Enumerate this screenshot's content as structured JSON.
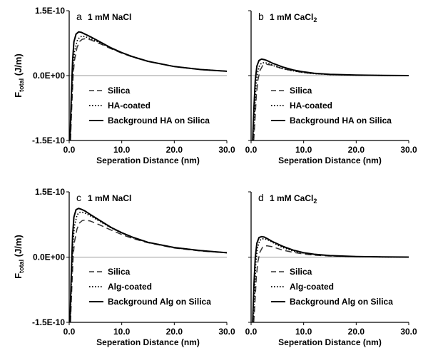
{
  "y_axis_label": "F",
  "y_axis_label_sub": "total",
  "y_axis_unit": " (J/m)",
  "chart_data": [
    {
      "panel": "a",
      "type": "line",
      "condition": "1 mM NaCl",
      "xlabel": "Seperation Distance (nm)",
      "xlim": [
        0,
        30
      ],
      "ylim": [
        -1.5e-10,
        1.5e-10
      ],
      "x_tick_labels": [
        "0.0",
        "10.0",
        "20.0",
        "30.0"
      ],
      "y_tick_labels": [
        "1.5E-10",
        "0.0E+00",
        "-1.5E-10"
      ],
      "series": [
        {
          "name": "Silica",
          "style": "dashed",
          "x": [
            0.25,
            0.5,
            0.75,
            1.0,
            1.5,
            2.0,
            2.5,
            3.0,
            4.0,
            6.0,
            8.0,
            10.0,
            12.0,
            15.0,
            20.0,
            25.0,
            30.0
          ],
          "y": [
            -1.5e-10,
            -7e-11,
            0.0,
            3.5e-11,
            6.5e-11,
            7.9e-11,
            8.4e-11,
            8.5e-11,
            8.3e-11,
            7.3e-11,
            6.2e-11,
            5.2e-11,
            4.3e-11,
            3.3e-11,
            2.1e-11,
            1.4e-11,
            1e-11
          ]
        },
        {
          "name": "HA-coated",
          "style": "dotted",
          "x": [
            0.2,
            0.45,
            0.7,
            1.0,
            1.5,
            2.0,
            2.5,
            3.0,
            4.0,
            6.0,
            8.0,
            10.0,
            12.0,
            15.0,
            20.0,
            25.0,
            30.0
          ],
          "y": [
            -1.5e-10,
            -6e-11,
            1.5e-11,
            5.5e-11,
            8e-11,
            8.9e-11,
            9.1e-11,
            9e-11,
            8.6e-11,
            7.5e-11,
            6.3e-11,
            5.3e-11,
            4.4e-11,
            3.3e-11,
            2.1e-11,
            1.4e-11,
            1e-11
          ]
        },
        {
          "name": "Background HA on Silica",
          "style": "solid",
          "x": [
            0.15,
            0.4,
            0.65,
            0.9,
            1.3,
            1.8,
            2.3,
            3.0,
            4.0,
            6.0,
            8.0,
            10.0,
            12.0,
            15.0,
            20.0,
            25.0,
            30.0
          ],
          "y": [
            -1.5e-10,
            -5e-11,
            3.5e-11,
            7.8e-11,
            9.6e-11,
            1.01e-10,
            1e-10,
            9.6e-11,
            9e-11,
            7.7e-11,
            6.4e-11,
            5.3e-11,
            4.4e-11,
            3.3e-11,
            2.1e-11,
            1.4e-11,
            1e-11
          ]
        }
      ],
      "legend": [
        "Silica",
        "HA-coated",
        "Background HA on Silica"
      ]
    },
    {
      "panel": "b",
      "type": "line",
      "condition": "1 mM CaCl",
      "condition_sub": "2",
      "xlabel": "Seperation Distance (nm)",
      "xlim": [
        0,
        30
      ],
      "ylim": [
        -1.5e-10,
        1.5e-10
      ],
      "x_tick_labels": [
        "0.0",
        "10.0",
        "20.0",
        "30.0"
      ],
      "y_tick_labels": [],
      "series": [
        {
          "name": "Silica",
          "style": "dashed",
          "x": [
            0.5,
            0.8,
            1.0,
            1.3,
            1.7,
            2.2,
            3.0,
            4.0,
            5.0,
            6.0,
            8.0,
            10.0,
            12.0,
            15.0,
            20.0,
            25.0,
            30.0
          ],
          "y": [
            -1.5e-10,
            -9e-11,
            -4.5e-11,
            -1e-11,
            1.2e-11,
            2.3e-11,
            2.6e-11,
            2.4e-11,
            2e-11,
            1.6e-11,
            1.1e-11,
            7e-12,
            4.5e-12,
            2.5e-12,
            1e-12,
            3e-13,
            0.0
          ]
        },
        {
          "name": "HA-coated",
          "style": "dotted",
          "x": [
            0.4,
            0.7,
            0.9,
            1.2,
            1.6,
            2.0,
            2.6,
            3.5,
            4.5,
            6.0,
            8.0,
            10.0,
            12.0,
            15.0,
            20.0,
            25.0,
            30.0
          ],
          "y": [
            -1.5e-10,
            -8e-11,
            -3e-11,
            5e-12,
            2.3e-11,
            2.9e-11,
            3e-11,
            2.7e-11,
            2.2e-11,
            1.6e-11,
            1.1e-11,
            7e-12,
            4.5e-12,
            2.5e-12,
            1e-12,
            3e-13,
            0.0
          ]
        },
        {
          "name": "Background HA on Silica",
          "style": "solid",
          "x": [
            0.3,
            0.55,
            0.8,
            1.1,
            1.5,
            2.0,
            2.5,
            3.0,
            4.0,
            6.0,
            8.0,
            10.0,
            12.0,
            15.0,
            20.0,
            25.0,
            30.0
          ],
          "y": [
            -1.5e-10,
            -7e-11,
            -1e-11,
            2.2e-11,
            3.5e-11,
            3.8e-11,
            3.7e-11,
            3.5e-11,
            2.9e-11,
            2e-11,
            1.3e-11,
            8.5e-12,
            5.5e-12,
            3e-12,
            1.2e-12,
            4e-13,
            0.0
          ]
        }
      ],
      "legend": [
        "Silica",
        "HA-coated",
        "Background HA on Silica"
      ]
    },
    {
      "panel": "c",
      "type": "line",
      "condition": "1 mM NaCl",
      "xlabel": "Seperation Distance (nm)",
      "xlim": [
        0,
        30
      ],
      "ylim": [
        -1.5e-10,
        1.5e-10
      ],
      "x_tick_labels": [
        "0.0",
        "10.0",
        "20.0",
        "30.0"
      ],
      "y_tick_labels": [
        "1.5E-10",
        "0.0E+00",
        "-1.5E-10"
      ],
      "series": [
        {
          "name": "Silica",
          "style": "dashed",
          "x": [
            0.25,
            0.5,
            0.75,
            1.0,
            1.5,
            2.0,
            2.5,
            3.0,
            4.0,
            6.0,
            8.0,
            10.0,
            12.0,
            15.0,
            20.0,
            25.0,
            30.0
          ],
          "y": [
            -1.5e-10,
            -7e-11,
            0.0,
            3.5e-11,
            6.5e-11,
            7.9e-11,
            8.4e-11,
            8.5e-11,
            8.3e-11,
            7.3e-11,
            6.2e-11,
            5.2e-11,
            4.3e-11,
            3.3e-11,
            2.1e-11,
            1.4e-11,
            1e-11
          ]
        },
        {
          "name": "Alg-coated",
          "style": "dotted",
          "x": [
            0.2,
            0.45,
            0.7,
            1.0,
            1.5,
            2.0,
            2.5,
            3.0,
            4.0,
            6.0,
            8.0,
            10.0,
            12.0,
            15.0,
            20.0,
            25.0,
            30.0
          ],
          "y": [
            -1.5e-10,
            -5e-11,
            3e-11,
            7.2e-11,
            9.7e-11,
            1.03e-10,
            1.03e-10,
            1.01e-10,
            9.5e-11,
            8.1e-11,
            6.7e-11,
            5.5e-11,
            4.5e-11,
            3.4e-11,
            2.2e-11,
            1.5e-11,
            1e-11
          ]
        },
        {
          "name": "Background Alg on Silica",
          "style": "solid",
          "x": [
            0.15,
            0.4,
            0.65,
            0.9,
            1.3,
            1.8,
            2.3,
            3.0,
            4.0,
            6.0,
            8.0,
            10.0,
            12.0,
            15.0,
            20.0,
            25.0,
            30.0
          ],
          "y": [
            -1.5e-10,
            -4e-11,
            5e-11,
            9.2e-11,
            1.09e-10,
            1.12e-10,
            1.1e-10,
            1.06e-10,
            9.8e-11,
            8.3e-11,
            6.8e-11,
            5.6e-11,
            4.6e-11,
            3.4e-11,
            2.2e-11,
            1.5e-11,
            1e-11
          ]
        }
      ],
      "legend": [
        "Silica",
        "Alg-coated",
        "Background Alg on Silica"
      ]
    },
    {
      "panel": "d",
      "type": "line",
      "condition": "1 mM CaCl",
      "condition_sub": "2",
      "xlabel": "Seperation Distance (nm)",
      "xlim": [
        0,
        30
      ],
      "ylim": [
        -1.5e-10,
        1.5e-10
      ],
      "x_tick_labels": [
        "0.0",
        "10.0",
        "20.0",
        "30.0"
      ],
      "y_tick_labels": [],
      "series": [
        {
          "name": "Silica",
          "style": "dashed",
          "x": [
            0.5,
            0.8,
            1.0,
            1.3,
            1.7,
            2.2,
            3.0,
            4.0,
            5.0,
            6.0,
            8.0,
            10.0,
            12.0,
            15.0,
            20.0,
            25.0,
            30.0
          ],
          "y": [
            -1.5e-10,
            -9e-11,
            -4.5e-11,
            -1e-11,
            1.2e-11,
            2.3e-11,
            2.6e-11,
            2.4e-11,
            2e-11,
            1.6e-11,
            1.1e-11,
            7e-12,
            4.5e-12,
            2.5e-12,
            1e-12,
            3e-13,
            0.0
          ]
        },
        {
          "name": "Alg-coated",
          "style": "dotted",
          "x": [
            0.4,
            0.7,
            0.9,
            1.2,
            1.6,
            2.0,
            2.6,
            3.5,
            4.5,
            6.0,
            8.0,
            10.0,
            12.0,
            15.0,
            20.0,
            25.0,
            30.0
          ],
          "y": [
            -1.5e-10,
            -7e-11,
            -1.5e-11,
            2e-11,
            3.7e-11,
            4.2e-11,
            4.2e-11,
            3.8e-11,
            3.1e-11,
            2.2e-11,
            1.4e-11,
            9e-12,
            6e-12,
            3e-12,
            1.2e-12,
            4e-13,
            0.0
          ]
        },
        {
          "name": "Background Alg on Silica",
          "style": "solid",
          "x": [
            0.3,
            0.55,
            0.8,
            1.1,
            1.5,
            2.0,
            2.5,
            3.0,
            4.0,
            6.0,
            8.0,
            10.0,
            12.0,
            15.0,
            20.0,
            25.0,
            30.0
          ],
          "y": [
            -1.5e-10,
            -6e-11,
            0.0,
            3.2e-11,
            4.5e-11,
            4.7e-11,
            4.6e-11,
            4.3e-11,
            3.6e-11,
            2.5e-11,
            1.6e-11,
            1e-11,
            6.5e-12,
            3.5e-12,
            1.3e-12,
            4e-13,
            0.0
          ]
        }
      ],
      "legend": [
        "Silica",
        "Alg-coated",
        "Background Alg on Silica"
      ]
    }
  ]
}
